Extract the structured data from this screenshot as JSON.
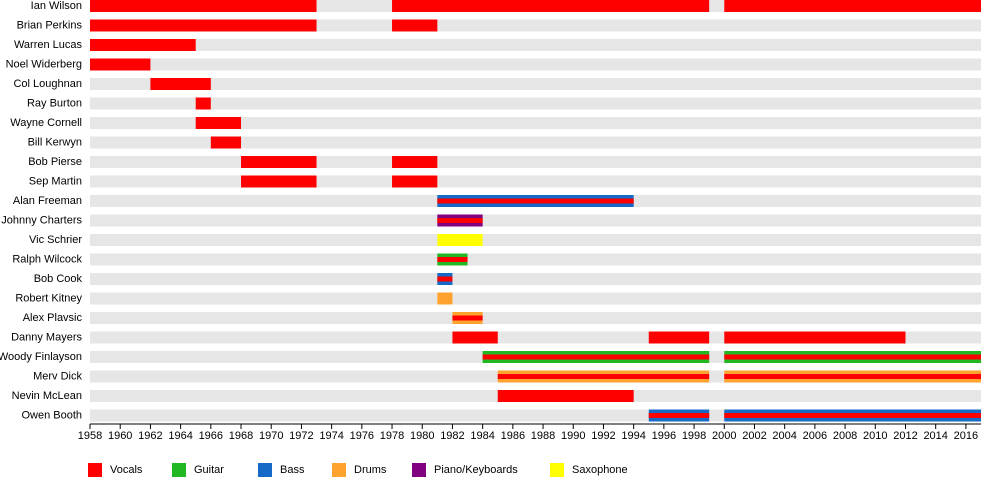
{
  "chart_data": {
    "type": "timeline",
    "xlim": [
      1958,
      2017
    ],
    "xticks": [
      1958,
      1960,
      1962,
      1964,
      1966,
      1968,
      1970,
      1972,
      1974,
      1976,
      1978,
      1980,
      1982,
      1984,
      1986,
      1988,
      1990,
      1992,
      1994,
      1996,
      1998,
      2000,
      2002,
      2004,
      2006,
      2008,
      2010,
      2012,
      2014,
      2016
    ],
    "roles": [
      {
        "name": "Vocals",
        "color": "#ff0000"
      },
      {
        "name": "Guitar",
        "color": "#22b822"
      },
      {
        "name": "Bass",
        "color": "#1569c7"
      },
      {
        "name": "Drums",
        "color": "#ffa32e"
      },
      {
        "name": "Piano/Keyboards",
        "color": "#800080"
      },
      {
        "name": "Saxophone",
        "color": "#ffff00"
      }
    ],
    "members": [
      {
        "name": "Ian Wilson",
        "periods": [
          {
            "start": 1958,
            "end": 1973,
            "roles": [
              "Vocals"
            ]
          },
          {
            "start": 1978,
            "end": 1999,
            "roles": [
              "Vocals"
            ]
          },
          {
            "start": 2000,
            "end": 2017,
            "roles": [
              "Vocals"
            ]
          }
        ]
      },
      {
        "name": "Brian Perkins",
        "periods": [
          {
            "start": 1958,
            "end": 1973,
            "roles": [
              "Vocals"
            ]
          },
          {
            "start": 1978,
            "end": 1981,
            "roles": [
              "Vocals"
            ]
          }
        ]
      },
      {
        "name": "Warren Lucas",
        "periods": [
          {
            "start": 1958,
            "end": 1965,
            "roles": [
              "Vocals"
            ]
          }
        ]
      },
      {
        "name": "Noel Widerberg",
        "periods": [
          {
            "start": 1958,
            "end": 1962,
            "roles": [
              "Vocals"
            ]
          }
        ]
      },
      {
        "name": "Col Loughnan",
        "periods": [
          {
            "start": 1962,
            "end": 1966,
            "roles": [
              "Vocals"
            ]
          }
        ]
      },
      {
        "name": "Ray Burton",
        "periods": [
          {
            "start": 1965,
            "end": 1966,
            "roles": [
              "Vocals"
            ]
          }
        ]
      },
      {
        "name": "Wayne Cornell",
        "periods": [
          {
            "start": 1965,
            "end": 1968,
            "roles": [
              "Vocals"
            ]
          }
        ]
      },
      {
        "name": "Bill Kerwyn",
        "periods": [
          {
            "start": 1966,
            "end": 1968,
            "roles": [
              "Vocals"
            ]
          }
        ]
      },
      {
        "name": "Bob Pierse",
        "periods": [
          {
            "start": 1968,
            "end": 1973,
            "roles": [
              "Vocals"
            ]
          },
          {
            "start": 1978,
            "end": 1981,
            "roles": [
              "Vocals"
            ]
          }
        ]
      },
      {
        "name": "Sep Martin",
        "periods": [
          {
            "start": 1968,
            "end": 1973,
            "roles": [
              "Vocals"
            ]
          },
          {
            "start": 1978,
            "end": 1981,
            "roles": [
              "Vocals"
            ]
          }
        ]
      },
      {
        "name": "Alan Freeman",
        "periods": [
          {
            "start": 1981,
            "end": 1994,
            "roles": [
              "Bass",
              "Vocals"
            ]
          }
        ]
      },
      {
        "name": "Johnny Charters",
        "periods": [
          {
            "start": 1981,
            "end": 1984,
            "roles": [
              "Piano/Keyboards",
              "Vocals"
            ]
          }
        ]
      },
      {
        "name": "Vic Schrier",
        "periods": [
          {
            "start": 1981,
            "end": 1984,
            "roles": [
              "Saxophone"
            ]
          }
        ]
      },
      {
        "name": "Ralph Wilcock",
        "periods": [
          {
            "start": 1981,
            "end": 1983,
            "roles": [
              "Guitar",
              "Vocals"
            ]
          }
        ]
      },
      {
        "name": "Bob Cook",
        "periods": [
          {
            "start": 1981,
            "end": 1982,
            "roles": [
              "Bass",
              "Vocals"
            ]
          }
        ]
      },
      {
        "name": "Robert Kitney",
        "periods": [
          {
            "start": 1981,
            "end": 1982,
            "roles": [
              "Drums"
            ]
          }
        ]
      },
      {
        "name": "Alex Plavsic",
        "periods": [
          {
            "start": 1982,
            "end": 1984,
            "roles": [
              "Drums",
              "Vocals"
            ]
          }
        ]
      },
      {
        "name": "Danny Mayers",
        "periods": [
          {
            "start": 1982,
            "end": 1985,
            "roles": [
              "Vocals"
            ]
          },
          {
            "start": 1995,
            "end": 1999,
            "roles": [
              "Vocals"
            ]
          },
          {
            "start": 2000,
            "end": 2012,
            "roles": [
              "Vocals"
            ]
          }
        ]
      },
      {
        "name": "Woody Finlayson",
        "periods": [
          {
            "start": 1984,
            "end": 1999,
            "roles": [
              "Guitar",
              "Vocals"
            ]
          },
          {
            "start": 2000,
            "end": 2017,
            "roles": [
              "Guitar",
              "Vocals"
            ]
          }
        ]
      },
      {
        "name": "Merv Dick",
        "periods": [
          {
            "start": 1985,
            "end": 1999,
            "roles": [
              "Drums",
              "Vocals"
            ]
          },
          {
            "start": 2000,
            "end": 2017,
            "roles": [
              "Drums",
              "Vocals"
            ]
          }
        ]
      },
      {
        "name": "Nevin McLean",
        "periods": [
          {
            "start": 1985,
            "end": 1994,
            "roles": [
              "Vocals"
            ]
          }
        ]
      },
      {
        "name": "Owen Booth",
        "periods": [
          {
            "start": 1995,
            "end": 1999,
            "roles": [
              "Bass",
              "Vocals"
            ]
          },
          {
            "start": 2000,
            "end": 2017,
            "roles": [
              "Bass",
              "Vocals"
            ]
          }
        ]
      }
    ]
  }
}
